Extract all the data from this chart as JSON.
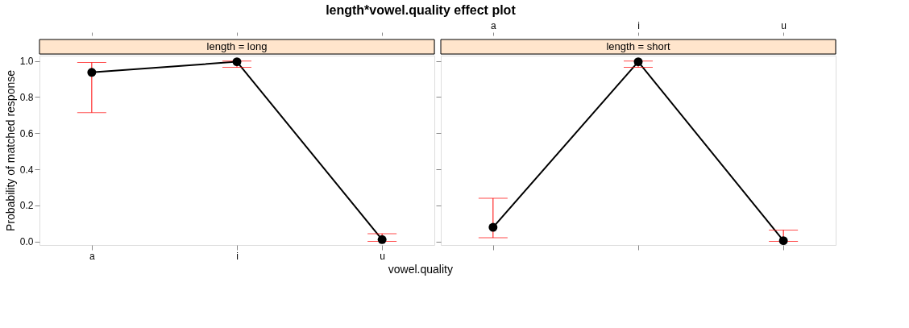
{
  "chart_data": [
    {
      "type": "line",
      "title": "length*vowel.quality effect plot",
      "subtitle": "length = long",
      "xlabel": "vowel.quality",
      "ylabel": "Probability of matched response",
      "categories": [
        "a",
        "i",
        "u"
      ],
      "series": [
        {
          "color": "#000000",
          "values": [
            0.937,
            0.996,
            0.01
          ],
          "errors": [
            [
              0.714,
              0.992
            ],
            [
              0.965,
              1.0
            ],
            [
              0.0,
              0.043
            ]
          ]
        }
      ],
      "ylim": [
        -0.02,
        1.03
      ],
      "yticks": [
        {
          "value": 0,
          "label": "0.0"
        },
        0.2,
        0.4,
        0.6,
        0.8,
        {
          "value": 1,
          "label": "1.0"
        }
      ],
      "marker": "circle",
      "line_style": "solid",
      "grid": false
    },
    {
      "type": "line",
      "subtitle": "length = short",
      "categories": [
        "a",
        "i",
        "u"
      ],
      "series": [
        {
          "color": "#000000",
          "values": [
            0.078,
            0.996,
            0.004
          ],
          "errors": [
            [
              0.02,
              0.239
            ],
            [
              0.965,
              1.0
            ],
            [
              0.0,
              0.063
            ]
          ]
        }
      ],
      "ylim": [
        -0.02,
        1.03
      ],
      "yticks": [
        0,
        0.2,
        0.4,
        0.6,
        0.8,
        1
      ],
      "marker": "circle",
      "line_style": "solid",
      "grid": false,
      "tick_labels": "x"
    }
  ]
}
